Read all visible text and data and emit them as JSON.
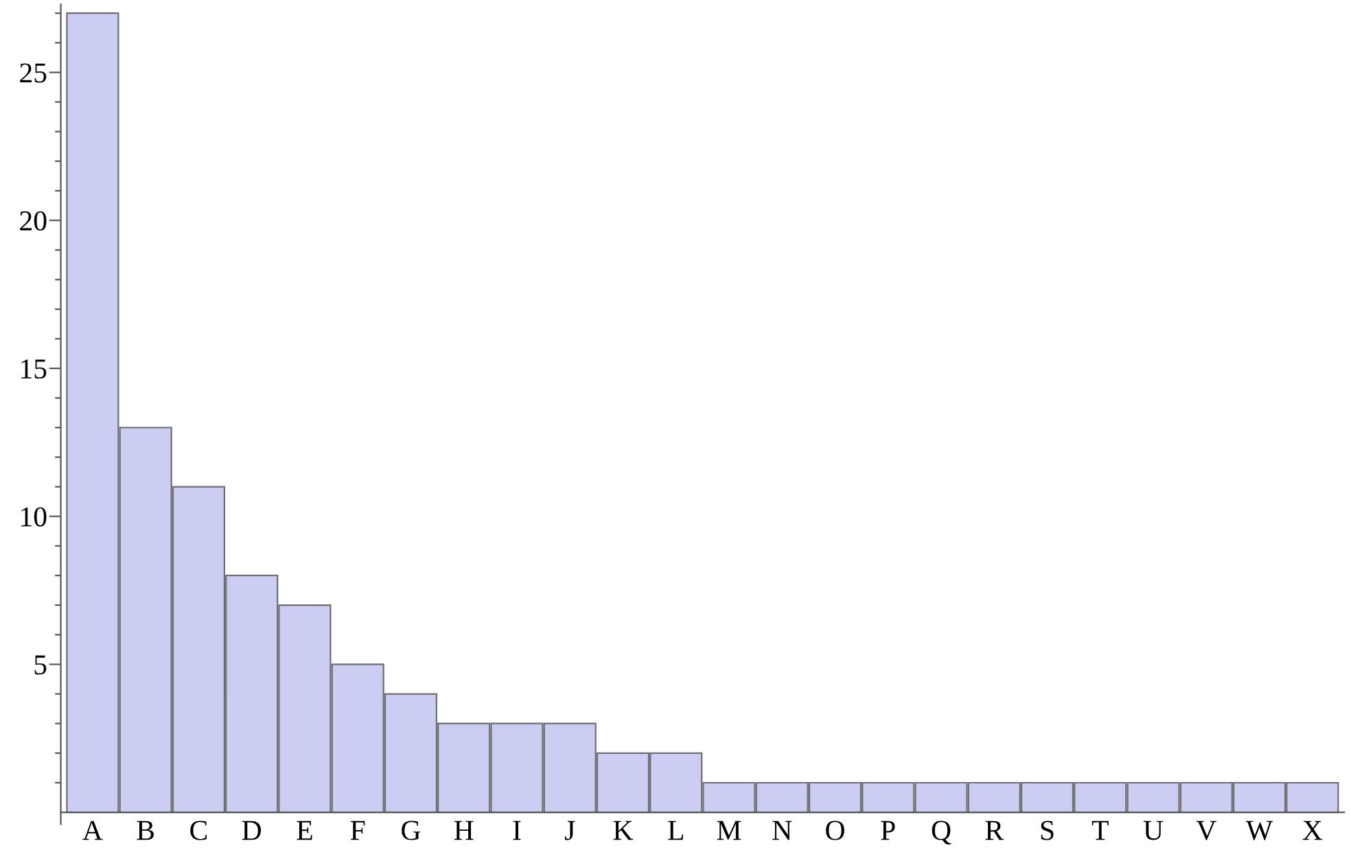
{
  "chart_data": {
    "type": "bar",
    "categories": [
      "A",
      "B",
      "C",
      "D",
      "E",
      "F",
      "G",
      "H",
      "I",
      "J",
      "K",
      "L",
      "M",
      "N",
      "O",
      "P",
      "Q",
      "R",
      "S",
      "T",
      "U",
      "V",
      "W",
      "X"
    ],
    "values": [
      27,
      13,
      11,
      8,
      7,
      5,
      4,
      3,
      3,
      3,
      2,
      2,
      1,
      1,
      1,
      1,
      1,
      1,
      1,
      1,
      1,
      1,
      1,
      1
    ],
    "color": "#cbcdf3",
    "ylim": [
      -0.4,
      27.3
    ],
    "yticks": [
      {
        "value": 1,
        "label": null
      },
      {
        "value": 2,
        "label": null
      },
      {
        "value": 3,
        "label": null
      },
      {
        "value": 4,
        "label": null
      },
      5,
      {
        "value": 6,
        "label": null
      },
      {
        "value": 7,
        "label": null
      },
      {
        "value": 8,
        "label": null
      },
      {
        "value": 9,
        "label": null
      },
      10,
      {
        "value": 11,
        "label": null
      },
      {
        "value": 12,
        "label": null
      },
      {
        "value": 13,
        "label": null
      },
      {
        "value": 14,
        "label": null
      },
      15,
      {
        "value": 16,
        "label": null
      },
      {
        "value": 17,
        "label": null
      },
      {
        "value": 18,
        "label": null
      },
      {
        "value": 19,
        "label": null
      },
      20,
      {
        "value": 21,
        "label": null
      },
      {
        "value": 22,
        "label": null
      },
      {
        "value": 23,
        "label": null
      },
      {
        "value": 24,
        "label": null
      },
      25,
      {
        "value": 26,
        "label": null
      },
      {
        "value": 27,
        "label": null
      }
    ],
    "grid": false,
    "legend": false
  }
}
